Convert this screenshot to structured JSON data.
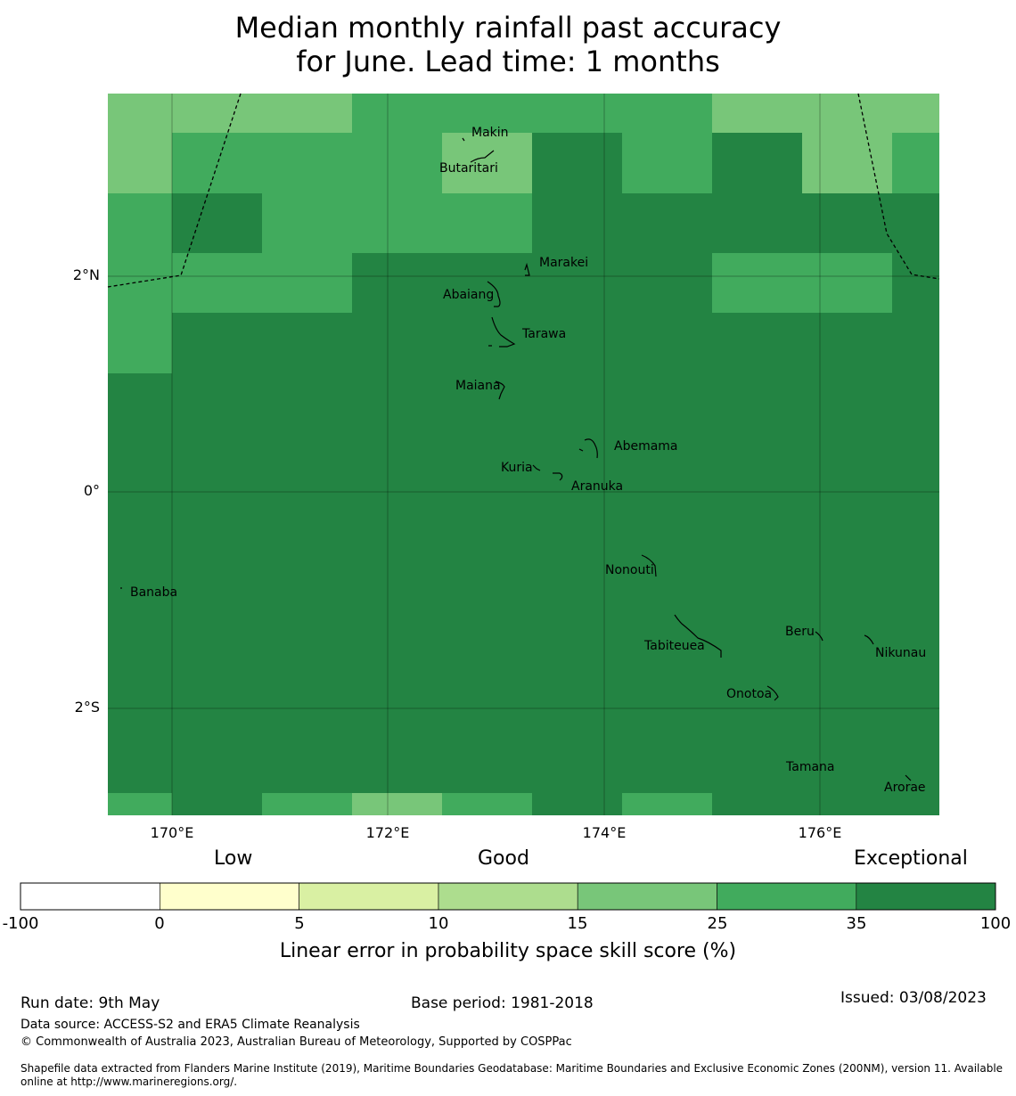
{
  "title_line1": "Median monthly rainfall past accuracy",
  "title_line2": "for June. Lead time: 1 months",
  "map": {
    "lat_labels": [
      "2°N",
      "0°",
      "2°S"
    ],
    "lon_labels": [
      "170°E",
      "172°E",
      "174°E",
      "176°E"
    ],
    "places": {
      "makin": "Makin",
      "butaritari": "Butaritari",
      "marakei": "Marakei",
      "abaiang": "Abaiang",
      "tarawa": "Tarawa",
      "maiana": "Maiana",
      "abemama": "Abemama",
      "kuria": "Kuria",
      "aranuka": "Aranuka",
      "nonouti": "Nonouti",
      "banaba": "Banaba",
      "beru": "Beru",
      "tabiteuea": "Tabiteuea",
      "nikunau": "Nikunau",
      "onotoa": "Onotoa",
      "tamana": "Tamana",
      "arorae": "Arorae"
    }
  },
  "colorbar": {
    "categories": {
      "low": "Low",
      "good": "Good",
      "exceptional": "Exceptional"
    },
    "ticks": [
      "-100",
      "0",
      "5",
      "10",
      "15",
      "25",
      "35",
      "100"
    ],
    "colors": [
      "#ffffff",
      "#ffffcc",
      "#d9f0a3",
      "#addd8e",
      "#78c679",
      "#41ab5d",
      "#238443"
    ],
    "label": "Linear error in probability space skill score (%)"
  },
  "footer": {
    "run_date": "Run date: 9th May",
    "base_period": "Base period: 1981-2018",
    "issued": "Issued: 03/08/2023",
    "data_source": "Data source: ACCESS-S2 and ERA5 Climate Reanalysis",
    "copyright": "© Commonwealth of Australia 2023, Australian Bureau of Meteorology, Supported by COSPPac",
    "shapefile_line1": "Shapefile data extracted from Flanders Marine Institute (2019), Maritime Boundaries Geodatabase: Maritime Boundaries and Exclusive Economic Zones (200NM), version 11. Available",
    "shapefile_line2": "online at http://www.marineregions.org/."
  }
}
